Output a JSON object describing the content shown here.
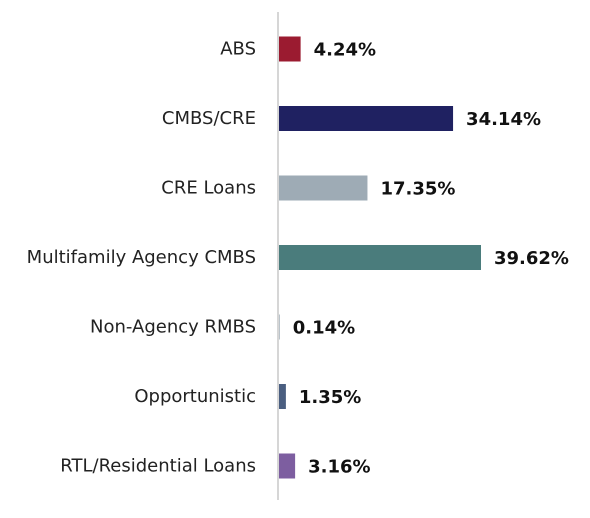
{
  "chart_data": {
    "type": "bar",
    "orientation": "horizontal",
    "categories": [
      "ABS",
      "CMBS/CRE",
      "CRE Loans",
      "Multifamily Agency CMBS",
      "Non-Agency RMBS",
      "Opportunistic",
      "RTL/Residential Loans"
    ],
    "values": [
      4.24,
      34.14,
      17.35,
      39.62,
      0.14,
      1.35,
      3.16
    ],
    "value_labels": [
      "4.24%",
      "34.14%",
      "17.35%",
      "39.62%",
      "0.14%",
      "1.35%",
      "3.16%"
    ],
    "colors": [
      "#9b1b30",
      "#1f2161",
      "#9eabb5",
      "#4a7c7c",
      "#9eabb5",
      "#4a5e80",
      "#7d5ea0"
    ],
    "unit": "%",
    "xlim": [
      0,
      45
    ],
    "grid": false,
    "legend": "none",
    "axis_color": "#c8c8c8"
  }
}
